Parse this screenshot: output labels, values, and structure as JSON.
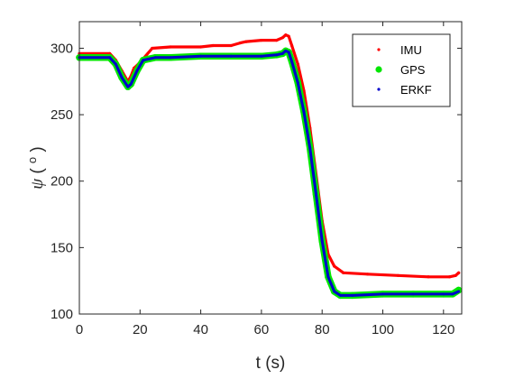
{
  "chart_data": {
    "type": "scatter",
    "xlabel": "t (s)",
    "ylabel_symbol": "ψ",
    "ylabel_unit": "o",
    "xlim": [
      0,
      126
    ],
    "ylim": [
      100,
      320
    ],
    "xticks": [
      0,
      20,
      40,
      60,
      80,
      100,
      120
    ],
    "yticks": [
      100,
      150,
      200,
      250,
      300
    ],
    "grid": false,
    "legend_position": "top-right",
    "series": [
      {
        "name": "IMU",
        "color": "#ff0000",
        "points": [
          [
            0,
            296
          ],
          [
            10,
            296
          ],
          [
            12,
            291
          ],
          [
            14,
            283
          ],
          [
            16,
            275
          ],
          [
            17,
            279
          ],
          [
            18,
            285
          ],
          [
            19,
            287
          ],
          [
            21,
            292
          ],
          [
            24,
            300
          ],
          [
            30,
            301
          ],
          [
            40,
            301
          ],
          [
            44,
            302
          ],
          [
            50,
            302
          ],
          [
            53,
            304
          ],
          [
            55,
            305
          ],
          [
            60,
            306
          ],
          [
            65,
            306
          ],
          [
            67,
            308
          ],
          [
            68,
            310
          ],
          [
            69,
            309
          ],
          [
            70,
            302
          ],
          [
            72,
            288
          ],
          [
            74,
            268
          ],
          [
            76,
            240
          ],
          [
            78,
            205
          ],
          [
            80,
            170
          ],
          [
            82,
            145
          ],
          [
            84,
            136
          ],
          [
            87,
            131
          ],
          [
            95,
            130
          ],
          [
            105,
            129
          ],
          [
            115,
            128
          ],
          [
            122,
            128
          ],
          [
            124,
            129
          ],
          [
            125,
            131
          ]
        ]
      },
      {
        "name": "GPS",
        "color": "#00e600",
        "points": [
          [
            0,
            293
          ],
          [
            10,
            293
          ],
          [
            12,
            288
          ],
          [
            14,
            278
          ],
          [
            16,
            271
          ],
          [
            17,
            273
          ],
          [
            19,
            283
          ],
          [
            21,
            291
          ],
          [
            25,
            293
          ],
          [
            30,
            293
          ],
          [
            40,
            294
          ],
          [
            50,
            294
          ],
          [
            60,
            294
          ],
          [
            65,
            295
          ],
          [
            67,
            296
          ],
          [
            68,
            298
          ],
          [
            69,
            297
          ],
          [
            70,
            290
          ],
          [
            72,
            274
          ],
          [
            74,
            252
          ],
          [
            76,
            225
          ],
          [
            78,
            190
          ],
          [
            80,
            155
          ],
          [
            82,
            128
          ],
          [
            84,
            117
          ],
          [
            86,
            114
          ],
          [
            90,
            114
          ],
          [
            100,
            115
          ],
          [
            110,
            115
          ],
          [
            120,
            115
          ],
          [
            123,
            115
          ],
          [
            125,
            118
          ]
        ]
      },
      {
        "name": "ERKF",
        "color": "#0000cc",
        "points": [
          [
            0,
            293
          ],
          [
            10,
            293
          ],
          [
            12,
            288
          ],
          [
            14,
            278
          ],
          [
            16,
            271
          ],
          [
            17,
            273
          ],
          [
            19,
            283
          ],
          [
            21,
            291
          ],
          [
            25,
            293
          ],
          [
            30,
            293
          ],
          [
            40,
            294
          ],
          [
            50,
            294
          ],
          [
            60,
            294
          ],
          [
            65,
            295
          ],
          [
            67,
            296
          ],
          [
            68,
            298
          ],
          [
            69,
            297
          ],
          [
            70,
            290
          ],
          [
            72,
            274
          ],
          [
            74,
            252
          ],
          [
            76,
            225
          ],
          [
            78,
            190
          ],
          [
            80,
            155
          ],
          [
            82,
            128
          ],
          [
            84,
            117
          ],
          [
            86,
            114
          ],
          [
            90,
            114
          ],
          [
            100,
            115
          ],
          [
            110,
            115
          ],
          [
            120,
            115
          ],
          [
            123,
            115
          ],
          [
            125,
            117
          ]
        ]
      }
    ]
  }
}
